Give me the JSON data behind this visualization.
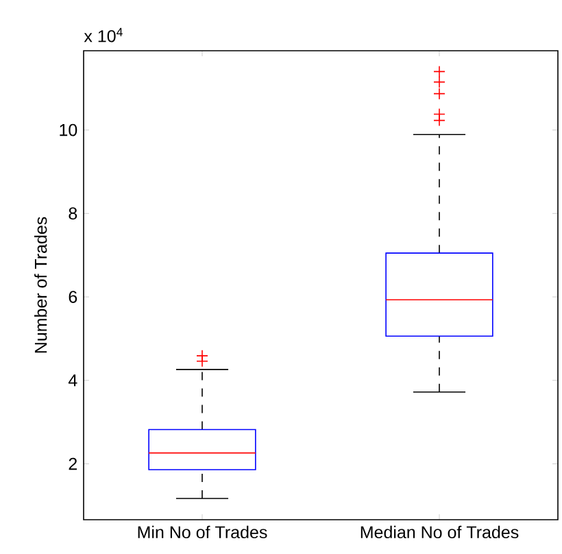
{
  "chart_data": {
    "type": "box",
    "ylabel": "Number of Trades",
    "annotations": [
      "x 10$^{4}$"
    ],
    "categories": [
      "Min No of Trades",
      "Median No of Trades"
    ],
    "series": [
      {
        "color": "#0000ff",
        "boxes": [
          {
            "low": 1.17,
            "q1": 1.86,
            "median": 2.26,
            "q3": 2.82,
            "high": 4.26,
            "outliers": [
              4.46,
              4.59
            ]
          },
          {
            "low": 3.72,
            "q1": 5.06,
            "median": 5.93,
            "q3": 7.05,
            "high": 9.89,
            "outliers": [
              10.23,
              10.38,
              10.87,
              11.15,
              11.4
            ]
          }
        ]
      }
    ],
    "ylim": [
      0.66,
      11.9
    ],
    "yticks": [
      2,
      4,
      6,
      8,
      10
    ],
    "grid": false
  }
}
